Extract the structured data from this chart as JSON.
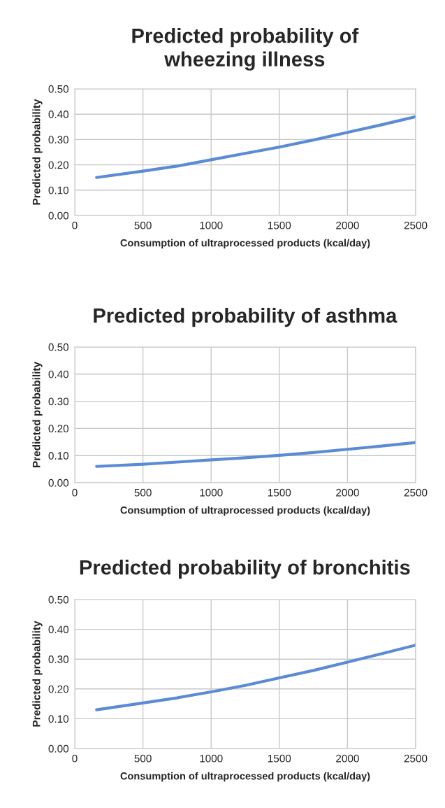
{
  "chart_data": [
    {
      "type": "line",
      "title": "Predicted probability of\nwheezing illness",
      "xlabel": "Consumption of ultraprocessed products (kcal/day)",
      "ylabel": "Predicted probability",
      "x": [
        160,
        500,
        750,
        1000,
        1250,
        1500,
        1750,
        2000,
        2250,
        2500
      ],
      "series": [
        {
          "color": "#5b8bd5",
          "values": [
            0.15,
            0.175,
            0.195,
            0.22,
            0.245,
            0.27,
            0.298,
            0.328,
            0.358,
            0.39
          ]
        }
      ],
      "xlim": [
        0,
        2500
      ],
      "xticks": [
        0,
        500,
        1000,
        1500,
        2000,
        2500
      ],
      "ylim": [
        0,
        0.5
      ],
      "yticks": [
        {
          "value": 0,
          "label": "0.00"
        },
        {
          "value": 0.1,
          "label": "0.10"
        },
        {
          "value": 0.2,
          "label": "0.20"
        },
        {
          "value": 0.3,
          "label": "0.30"
        },
        {
          "value": 0.4,
          "label": "0.40"
        },
        {
          "value": 0.5,
          "label": "0.50"
        }
      ],
      "grid": true,
      "marker": "none",
      "line_style": "solid",
      "legend": false
    },
    {
      "type": "line",
      "title": "Predicted probability of asthma",
      "xlabel": "Consumption of ultraprocessed products (kcal/day)",
      "ylabel": "Predicted probability",
      "x": [
        160,
        500,
        750,
        1000,
        1250,
        1500,
        1750,
        2000,
        2250,
        2500
      ],
      "series": [
        {
          "color": "#5b8bd5",
          "values": [
            0.06,
            0.068,
            0.076,
            0.084,
            0.092,
            0.101,
            0.111,
            0.123,
            0.135,
            0.148
          ]
        }
      ],
      "xlim": [
        0,
        2500
      ],
      "xticks": [
        0,
        500,
        1000,
        1500,
        2000,
        2500
      ],
      "ylim": [
        0,
        0.5
      ],
      "yticks": [
        {
          "value": 0,
          "label": "0.00"
        },
        {
          "value": 0.1,
          "label": "0.10"
        },
        {
          "value": 0.2,
          "label": "0.20"
        },
        {
          "value": 0.3,
          "label": "0.30"
        },
        {
          "value": 0.4,
          "label": "0.40"
        },
        {
          "value": 0.5,
          "label": "0.50"
        }
      ],
      "grid": true,
      "marker": "none",
      "line_style": "solid",
      "legend": false
    },
    {
      "type": "line",
      "title": "Predicted probability of bronchitis",
      "xlabel": "Consumption of ultraprocessed products (kcal/day)",
      "ylabel": "Predicted probability",
      "x": [
        160,
        500,
        750,
        1000,
        1250,
        1500,
        1750,
        2000,
        2250,
        2500
      ],
      "series": [
        {
          "color": "#5b8bd5",
          "values": [
            0.13,
            0.153,
            0.17,
            0.19,
            0.212,
            0.237,
            0.262,
            0.29,
            0.318,
            0.347
          ]
        }
      ],
      "xlim": [
        0,
        2500
      ],
      "xticks": [
        0,
        500,
        1000,
        1500,
        2000,
        2500
      ],
      "ylim": [
        0,
        0.5
      ],
      "yticks": [
        {
          "value": 0,
          "label": "0.00"
        },
        {
          "value": 0.1,
          "label": "0.10"
        },
        {
          "value": 0.2,
          "label": "0.20"
        },
        {
          "value": 0.3,
          "label": "0.30"
        },
        {
          "value": 0.4,
          "label": "0.40"
        },
        {
          "value": 0.5,
          "label": "0.50"
        }
      ],
      "grid": true,
      "marker": "none",
      "line_style": "solid",
      "legend": false
    }
  ]
}
